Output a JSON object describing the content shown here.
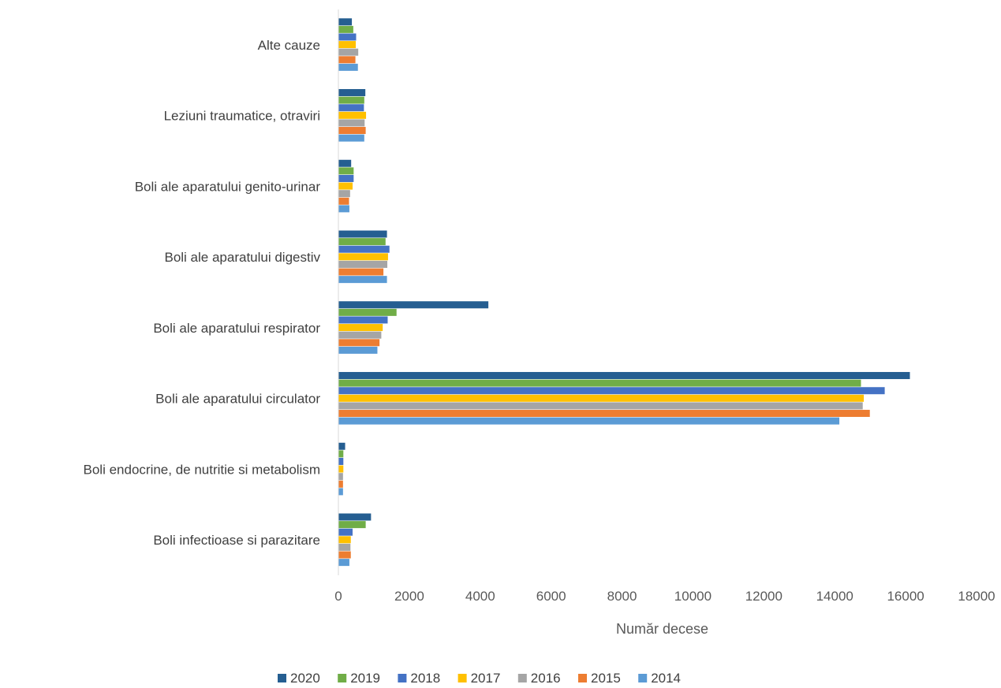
{
  "chart_data": {
    "type": "bar",
    "orientation": "horizontal",
    "title": "",
    "xlabel": "Număr decese",
    "ylabel": "",
    "xlim": [
      0,
      18000
    ],
    "x_ticks": [
      0,
      2000,
      4000,
      6000,
      8000,
      10000,
      12000,
      14000,
      16000,
      18000
    ],
    "grid": false,
    "legend_position": "bottom",
    "categories": [
      "Alte cauze",
      "Leziuni traumatice, otraviri",
      "Boli ale aparatului genito-urinar",
      "Boli ale aparatului digestiv",
      "Boli ale aparatului respirator",
      "Boli ale aparatului circulator",
      "Boli endocrine, de nutritie si metabolism",
      "Boli infectioase si parazitare"
    ],
    "series": [
      {
        "name": "2020",
        "color": "#255e91",
        "values": [
          380,
          760,
          360,
          1370,
          4230,
          16120,
          190,
          920
        ]
      },
      {
        "name": "2019",
        "color": "#70ad47",
        "values": [
          420,
          730,
          430,
          1330,
          1640,
          14740,
          140,
          770
        ]
      },
      {
        "name": "2018",
        "color": "#4472c4",
        "values": [
          500,
          720,
          430,
          1440,
          1390,
          15410,
          140,
          400
        ]
      },
      {
        "name": "2017",
        "color": "#ffc000",
        "values": [
          490,
          780,
          400,
          1400,
          1250,
          14820,
          140,
          350
        ]
      },
      {
        "name": "2016",
        "color": "#a5a5a5",
        "values": [
          560,
          740,
          330,
          1380,
          1210,
          14790,
          130,
          340
        ]
      },
      {
        "name": "2015",
        "color": "#ed7d31",
        "values": [
          480,
          770,
          300,
          1270,
          1160,
          14990,
          130,
          350
        ]
      },
      {
        "name": "2014",
        "color": "#5b9bd5",
        "values": [
          550,
          730,
          310,
          1370,
          1100,
          14130,
          130,
          310
        ]
      }
    ]
  }
}
